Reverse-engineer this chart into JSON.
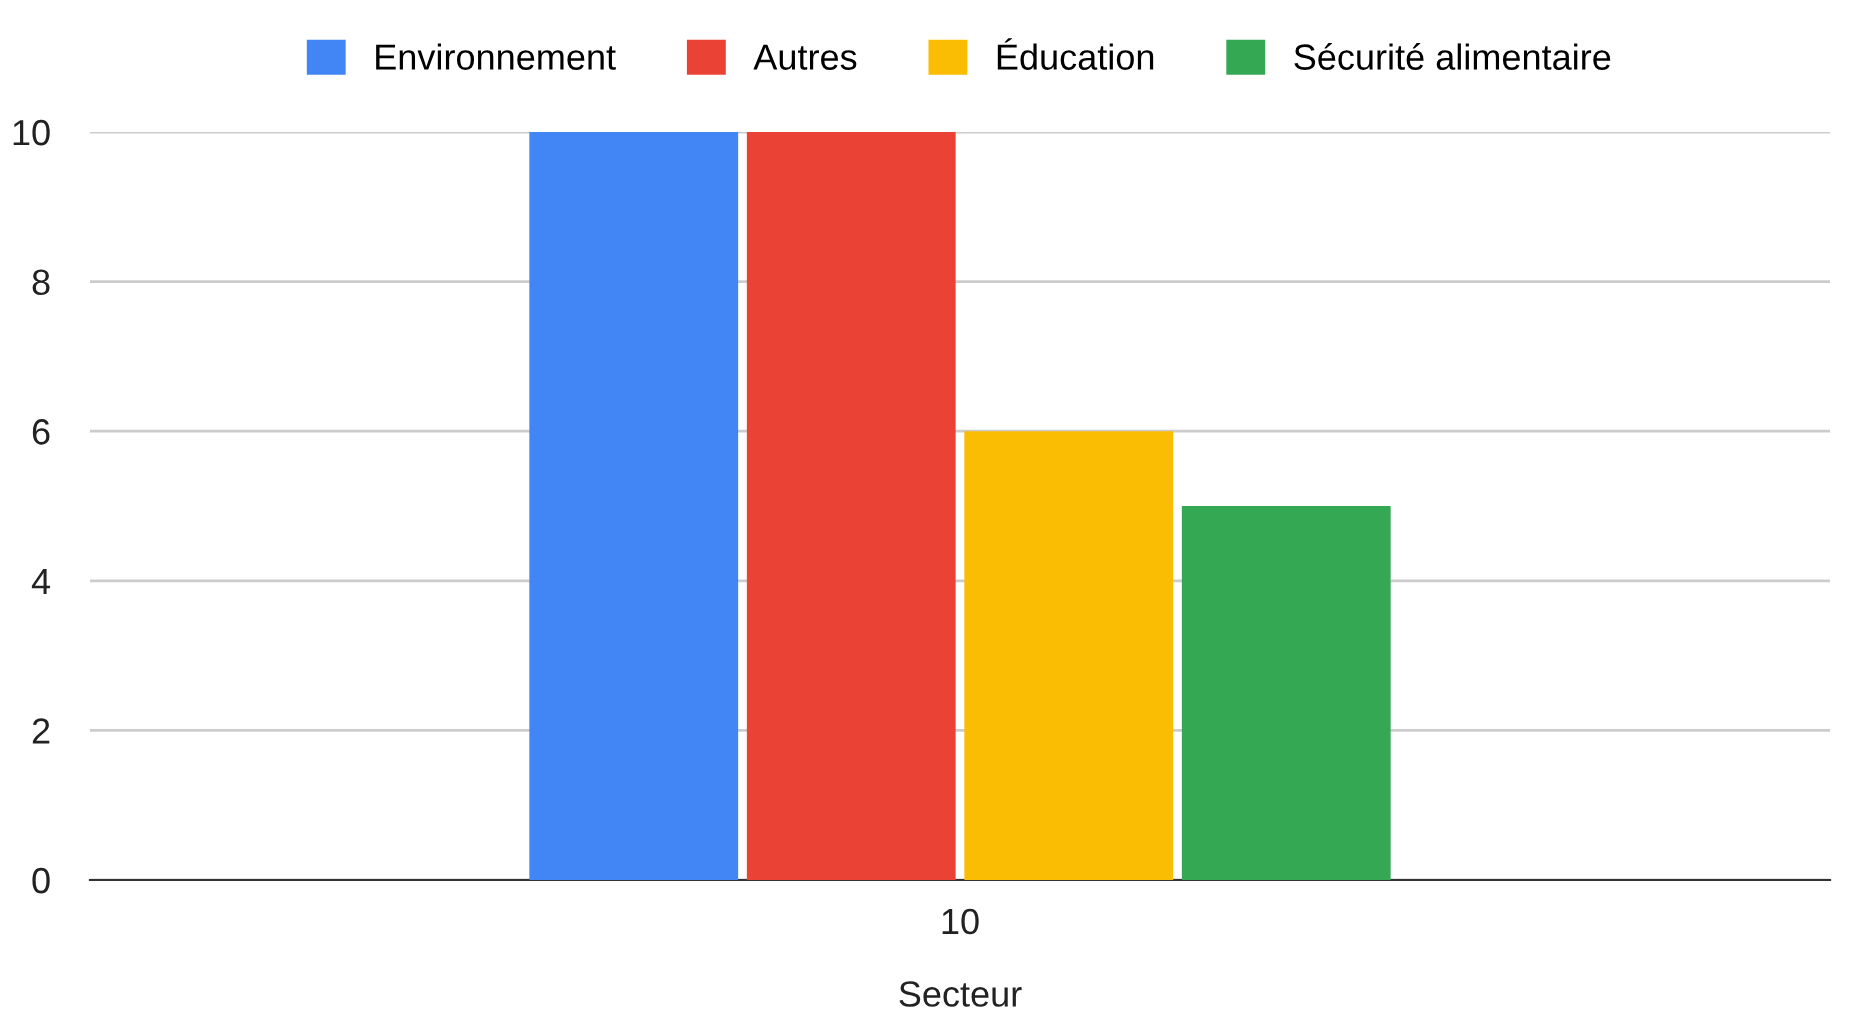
{
  "chart_data": {
    "type": "bar",
    "xlabel": "Secteur",
    "categories": [
      "10"
    ],
    "series": [
      {
        "name": "Environnement",
        "color": "#4285f4",
        "values": [
          10
        ]
      },
      {
        "name": "Autres",
        "color": "#ea4335",
        "values": [
          10
        ]
      },
      {
        "name": "Éducation",
        "color": "#fbbc04",
        "values": [
          6
        ]
      },
      {
        "name": "Sécurité alimentaire",
        "color": "#34a853",
        "values": [
          5
        ]
      }
    ],
    "ylim": [
      0,
      10
    ],
    "yticks": [
      0,
      2,
      4,
      6,
      8,
      10
    ],
    "grid": "y",
    "legend": "top"
  }
}
